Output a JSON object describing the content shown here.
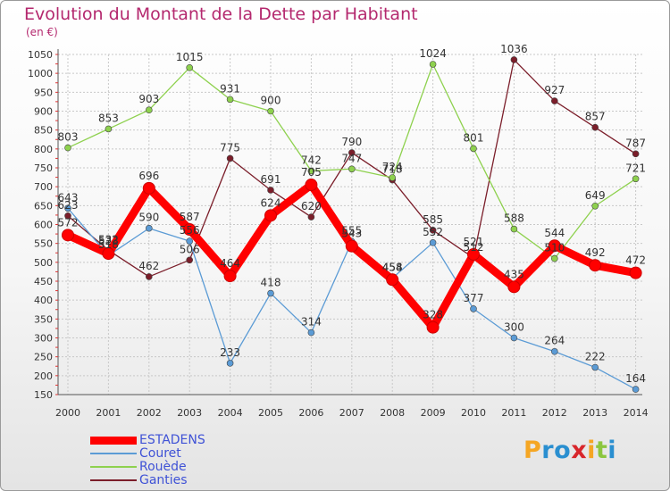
{
  "title": "Evolution du Montant de la Dette par Habitant",
  "unit_label": "(en €)",
  "brand": {
    "letters": [
      "P",
      "r",
      "o",
      "x",
      "i",
      "t",
      "i"
    ],
    "colors": [
      "#f5a623",
      "#2a8fd0",
      "#2a8fd0",
      "#d8262b",
      "#f5a623",
      "#8cc63f",
      "#2a8fd0"
    ]
  },
  "chart_data": {
    "type": "line",
    "title": "Evolution du Montant de la Dette par Habitant",
    "ylabel": "(en €)",
    "xlabel": "",
    "x": [
      "2000",
      "2001",
      "2002",
      "2003",
      "2004",
      "2005",
      "2006",
      "2007",
      "2008",
      "2009",
      "2010",
      "2011",
      "2012",
      "2013",
      "2014"
    ],
    "ylim": [
      150,
      1050
    ],
    "yticks": [
      150,
      200,
      250,
      300,
      350,
      400,
      450,
      500,
      550,
      600,
      650,
      700,
      750,
      800,
      850,
      900,
      950,
      1000,
      1050
    ],
    "grid": true,
    "legend_position": "bottom-left",
    "series": [
      {
        "name": "ESTADENS",
        "color": "#ff0000",
        "values": [
          572,
          523,
          696,
          587,
          464,
          624,
          705,
          543,
          454,
          328,
          521,
          435,
          544,
          492,
          472
        ]
      },
      {
        "name": "Couret",
        "color": "#5b9bd5",
        "values": [
          643,
          518,
          590,
          556,
          233,
          418,
          314,
          555,
          458,
          552,
          377,
          300,
          264,
          222,
          164
        ]
      },
      {
        "name": "Rouède",
        "color": "#8ed14e",
        "values": [
          803,
          853,
          903,
          1015,
          931,
          900,
          742,
          747,
          724,
          1024,
          801,
          588,
          510,
          649,
          721
        ]
      },
      {
        "name": "Ganties",
        "color": "#7b1e2a",
        "values": [
          623,
          532,
          462,
          506,
          775,
          691,
          620,
          790,
          718,
          585,
          512,
          1036,
          927,
          857,
          787
        ]
      }
    ]
  }
}
